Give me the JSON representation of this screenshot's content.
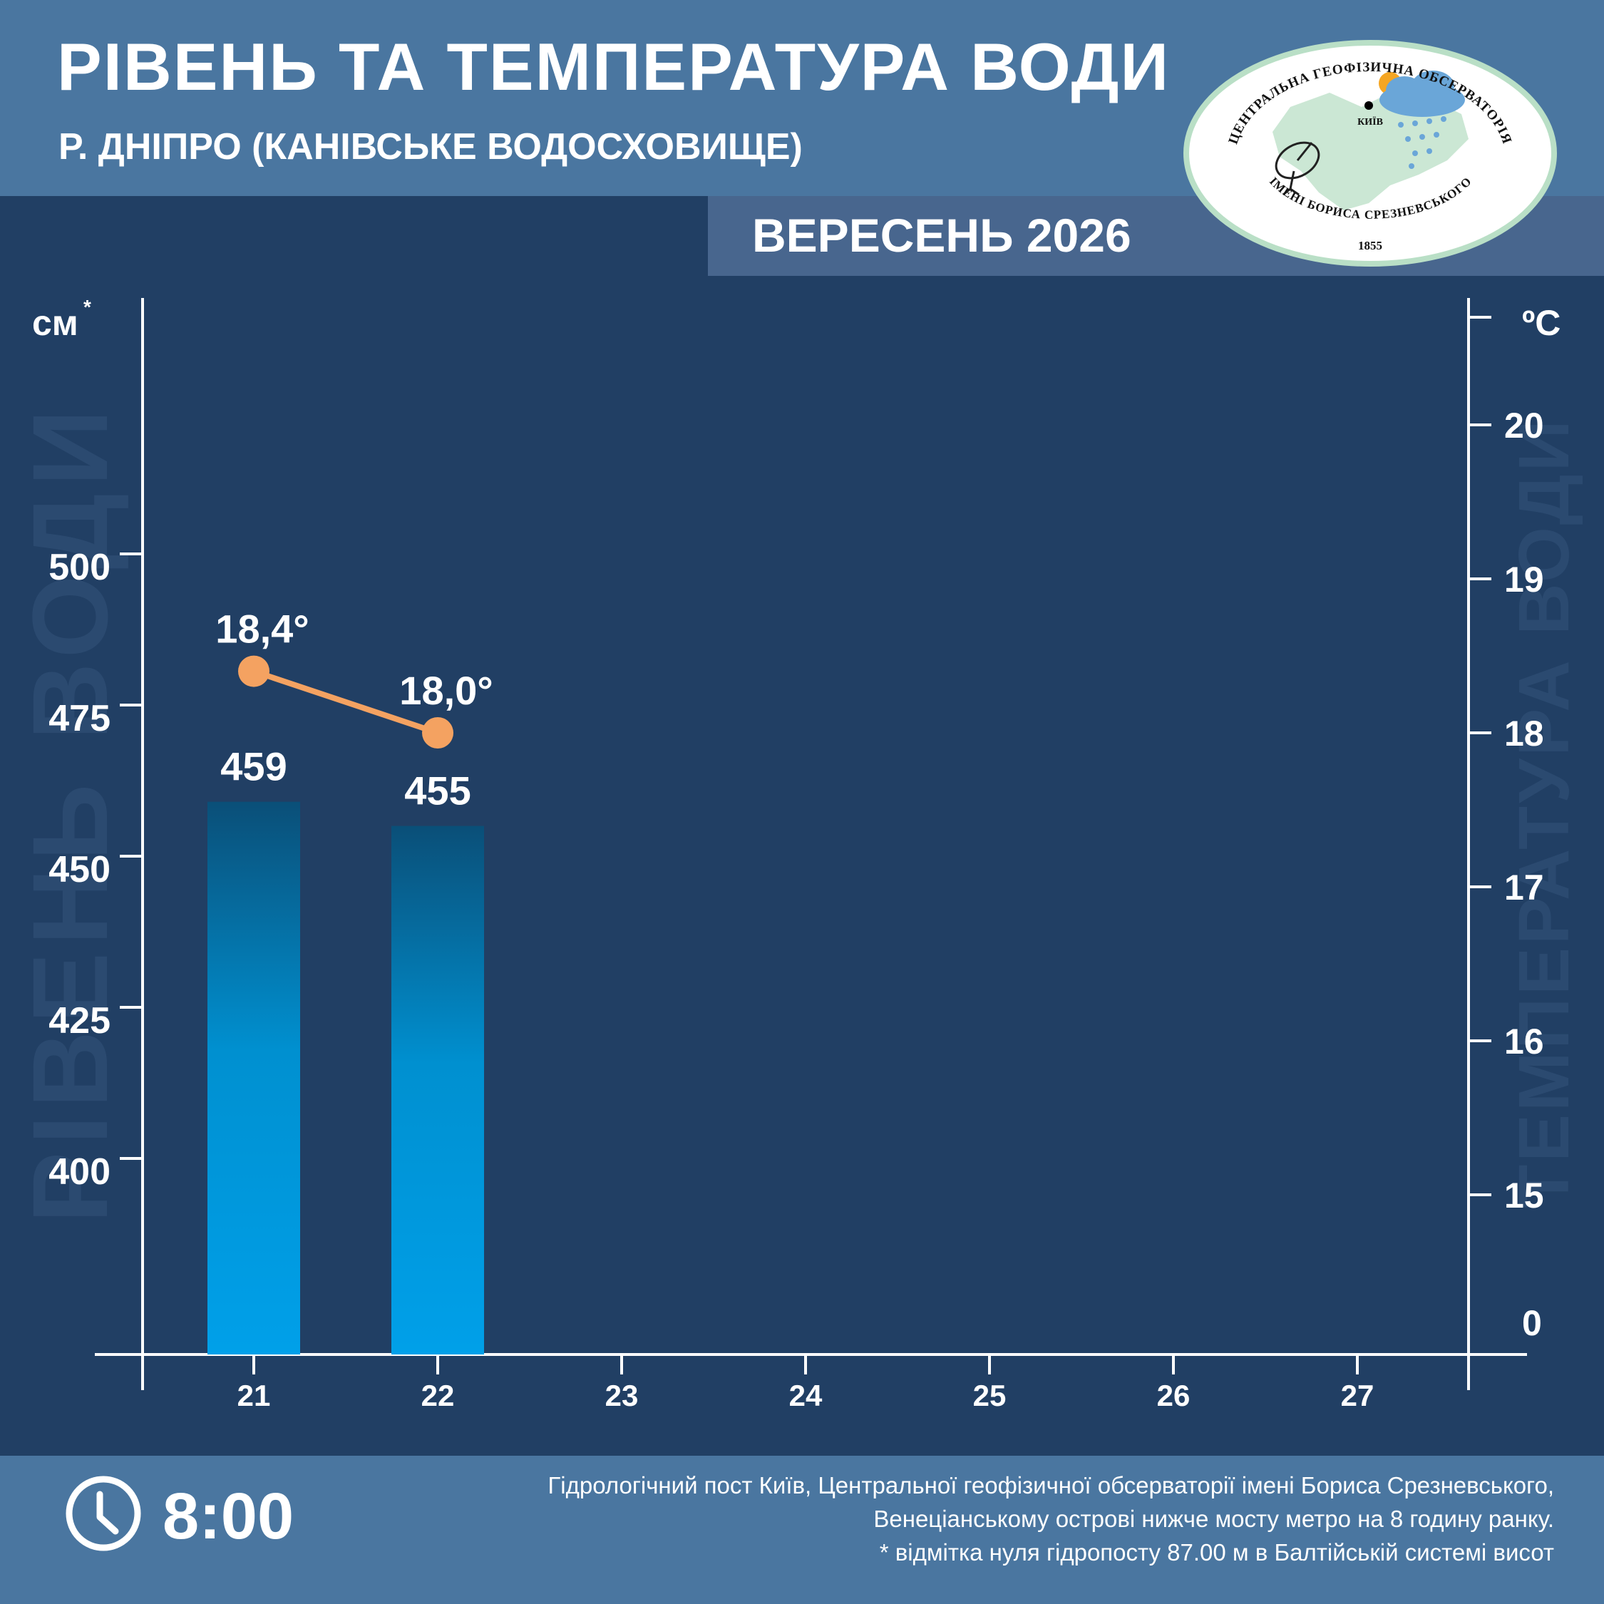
{
  "header": {
    "title": "РІВЕНЬ ТА ТЕМПЕРАТУРА ВОДИ",
    "subtitle": "Р. ДНІПРО (КАНІВСЬКЕ ВОДОСХОВИЩЕ)",
    "period": "ВЕРЕСЕНЬ 2026"
  },
  "logo": {
    "text_top": "ЦЕНТРАЛЬНА ГЕОФІЗИЧНА ОБСЕРВАТОРІЯ",
    "text_bottom": "ІМЕНІ БОРИСА СРЕЗНЕВСЬКОГО",
    "year": "1855",
    "city": "КИЇВ"
  },
  "colors": {
    "background": "#213f64",
    "header": "#4a76a0",
    "bar_top": "#0a4f78",
    "bar_bottom": "#00a0e9",
    "temperature_line": "#f4a261",
    "axis": "#ffffff",
    "watermark": "#2b4a70"
  },
  "chart_data": {
    "type": "bar+line",
    "x": [
      "21",
      "22",
      "23",
      "24",
      "25",
      "26",
      "27"
    ],
    "left_axis": {
      "unit": "см",
      "unit_mark": "*",
      "watermark": "РІВЕНЬ ВОДИ",
      "ticks": [
        400,
        425,
        450,
        475,
        500
      ]
    },
    "right_axis": {
      "unit": "ºC",
      "watermark": "ТЕМПЕРАТУРА ВОДИ",
      "ticks": [
        15,
        16,
        17,
        18,
        19,
        20
      ],
      "zero_label": "0"
    },
    "water_level": {
      "values": [
        459,
        455,
        null,
        null,
        null,
        null,
        null
      ],
      "labels": [
        "459",
        "455"
      ]
    },
    "water_temperature": {
      "values": [
        18.4,
        18.0,
        null,
        null,
        null,
        null,
        null
      ],
      "labels": [
        "18,4°",
        "18,0°"
      ]
    }
  },
  "footer": {
    "time": "8:00",
    "note_lines": [
      "Гідрологічний пост Київ, Центральної геофізичної обсерваторії імені Бориса Срезневського,",
      "Венеціанському острові нижче мосту метро  на 8 годину ранку.",
      "* відмітка нуля гідропосту 87.00 м в Балтійській системі висот"
    ]
  }
}
